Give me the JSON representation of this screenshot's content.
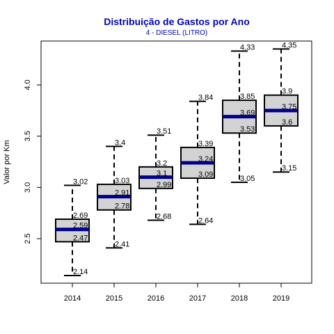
{
  "chart_data": {
    "type": "box",
    "title": "Distribuição de Gastos por Ano",
    "subtitle": "4 - DIESEL (LITRO)",
    "xlabel": "",
    "ylabel": "Valor por Km",
    "ylim": [
      2.05,
      4.4
    ],
    "yticks": [
      2.5,
      3.0,
      3.5,
      4.0
    ],
    "ytick_labels": [
      "2.5",
      "3.0",
      "3.5",
      "4.0"
    ],
    "categories": [
      "2014",
      "2015",
      "2016",
      "2017",
      "2018",
      "2019"
    ],
    "box_fill": "#d3d3d3",
    "median_color": "#00008b",
    "title_color": "#0000cc",
    "boxes": [
      {
        "category": "2014",
        "min": 2.14,
        "q1": 2.47,
        "median": 2.59,
        "q3": 2.69,
        "max": 3.02
      },
      {
        "category": "2015",
        "min": 2.41,
        "q1": 2.78,
        "median": 2.91,
        "q3": 3.03,
        "max": 3.4
      },
      {
        "category": "2016",
        "min": 2.68,
        "q1": 2.99,
        "median": 3.1,
        "q3": 3.2,
        "max": 3.51
      },
      {
        "category": "2017",
        "min": 2.64,
        "q1": 3.09,
        "median": 3.24,
        "q3": 3.39,
        "max": 3.84
      },
      {
        "category": "2018",
        "min": 3.05,
        "q1": 3.53,
        "median": 3.69,
        "q3": 3.85,
        "max": 4.33
      },
      {
        "category": "2019",
        "min": 3.15,
        "q1": 3.6,
        "median": 3.75,
        "q3": 3.9,
        "max": 4.35
      }
    ],
    "label_texts": [
      [
        "2.14",
        "2.47",
        "2.59",
        "2.69",
        "3.02"
      ],
      [
        "2.41",
        "2.78",
        "2.91",
        "3.03",
        "3.4"
      ],
      [
        "2.68",
        "2.99",
        "3.1",
        "3.2",
        "3.51"
      ],
      [
        "2.64",
        "3.09",
        "3.24",
        "3.39",
        "3.84"
      ],
      [
        "3.05",
        "3.53",
        "3.69",
        "3.85",
        "4.33"
      ],
      [
        "3.15",
        "3.6",
        "3.75",
        "3.9",
        "4.35"
      ]
    ]
  }
}
